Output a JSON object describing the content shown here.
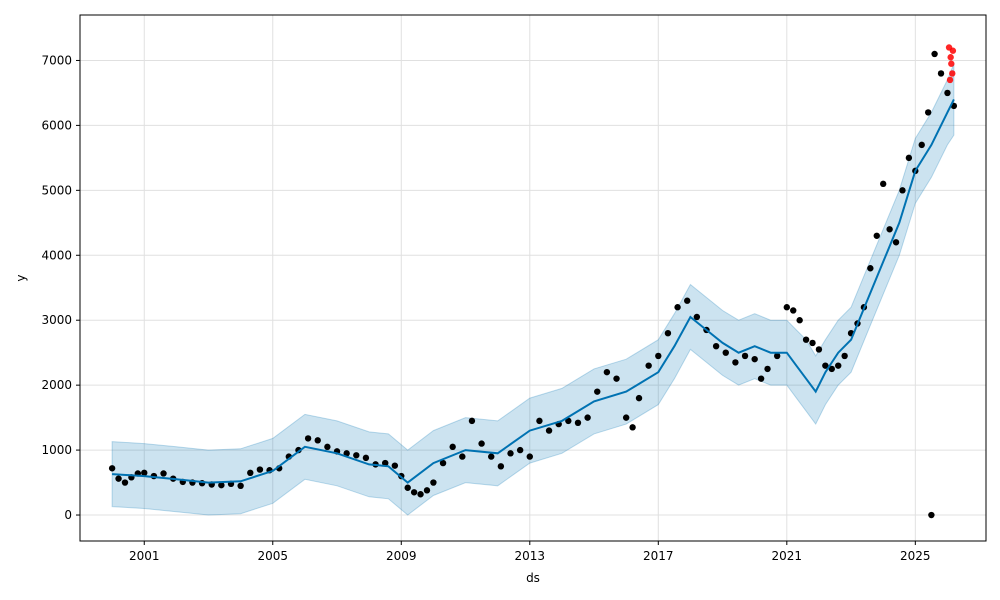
{
  "chart_data": {
    "type": "scatter",
    "title": "",
    "xlabel": "ds",
    "ylabel": "y",
    "xlim": [
      1999.0,
      2027.2
    ],
    "ylim": [
      -400,
      7700
    ],
    "x_ticks": [
      2001,
      2005,
      2009,
      2013,
      2017,
      2021,
      2025
    ],
    "x_tick_labels": [
      "2001",
      "2005",
      "2009",
      "2013",
      "2017",
      "2021",
      "2025"
    ],
    "y_ticks": [
      0,
      1000,
      2000,
      3000,
      4000,
      5000,
      6000,
      7000
    ],
    "y_tick_labels": [
      "0",
      "1000",
      "2000",
      "3000",
      "4000",
      "5000",
      "6000",
      "7000"
    ],
    "grid": true,
    "colors": {
      "observed": "#000000",
      "forecast": "#0072B2",
      "interval_fill": "#0072B2",
      "highlighted": "#ff0000"
    },
    "series": [
      {
        "role": "observed",
        "x": [
          2000.0,
          2000.2,
          2000.4,
          2000.6,
          2000.8,
          2001.0,
          2001.3,
          2001.6,
          2001.9,
          2002.2,
          2002.5,
          2002.8,
          2003.1,
          2003.4,
          2003.7,
          2004.0,
          2004.3,
          2004.6,
          2004.9,
          2005.2,
          2005.5,
          2005.8,
          2006.1,
          2006.4,
          2006.7,
          2007.0,
          2007.3,
          2007.6,
          2007.9,
          2008.2,
          2008.5,
          2008.8,
          2009.0,
          2009.2,
          2009.4,
          2009.6,
          2009.8,
          2010.0,
          2010.3,
          2010.6,
          2010.9,
          2011.2,
          2011.5,
          2011.8,
          2012.1,
          2012.4,
          2012.7,
          2013.0,
          2013.3,
          2013.6,
          2013.9,
          2014.2,
          2014.5,
          2014.8,
          2015.1,
          2015.4,
          2015.7,
          2016.0,
          2016.2,
          2016.4,
          2016.7,
          2017.0,
          2017.3,
          2017.6,
          2017.9,
          2018.2,
          2018.5,
          2018.8,
          2019.1,
          2019.4,
          2019.7,
          2020.0,
          2020.2,
          2020.4,
          2020.7,
          2021.0,
          2021.2,
          2021.4,
          2021.6,
          2021.8,
          2022.0,
          2022.2,
          2022.4,
          2022.6,
          2022.8,
          2023.0,
          2023.2,
          2023.4,
          2023.6,
          2023.8,
          2024.0,
          2024.2,
          2024.4,
          2024.6,
          2024.8,
          2025.0,
          2025.2,
          2025.4,
          2025.6,
          2025.8,
          2026.0,
          2026.2
        ],
        "y": [
          720,
          560,
          500,
          580,
          640,
          650,
          600,
          640,
          560,
          510,
          500,
          490,
          470,
          460,
          480,
          450,
          650,
          700,
          690,
          720,
          900,
          1000,
          1180,
          1150,
          1050,
          980,
          950,
          920,
          880,
          780,
          800,
          760,
          600,
          420,
          350,
          320,
          380,
          500,
          800,
          1050,
          900,
          1450,
          1100,
          900,
          750,
          950,
          1000,
          900,
          1450,
          1300,
          1400,
          1450,
          1420,
          1500,
          1900,
          2200,
          2100,
          1500,
          1350,
          1800,
          2300,
          2450,
          2800,
          3200,
          3300,
          3050,
          2850,
          2600,
          2500,
          2350,
          2450,
          2400,
          2100,
          2250,
          2450,
          3200,
          3150,
          3000,
          2700,
          2650,
          2550,
          2300,
          2250,
          2300,
          2450,
          2800,
          2950,
          3200,
          3800,
          4300,
          5100,
          4400,
          4200,
          5000,
          5500,
          5300,
          5700,
          6200,
          7100,
          6800,
          6500,
          6300
        ]
      },
      {
        "role": "observed_outlier",
        "x": [
          2025.5
        ],
        "y": [
          0
        ]
      },
      {
        "role": "highlighted",
        "x": [
          2026.05,
          2026.08,
          2026.1,
          2026.12,
          2026.15,
          2026.17
        ],
        "y": [
          7200,
          6700,
          7050,
          6950,
          6800,
          7150
        ]
      },
      {
        "role": "forecast",
        "x": [
          2000.0,
          2001.0,
          2002.0,
          2003.0,
          2004.0,
          2005.0,
          2006.0,
          2007.0,
          2008.0,
          2008.6,
          2009.2,
          2010.0,
          2011.0,
          2012.0,
          2013.0,
          2014.0,
          2015.0,
          2016.0,
          2017.0,
          2017.5,
          2018.0,
          2018.5,
          2019.0,
          2019.5,
          2020.0,
          2020.5,
          2021.0,
          2021.3,
          2021.6,
          2021.9,
          2022.2,
          2022.6,
          2023.0,
          2023.5,
          2024.0,
          2024.5,
          2025.0,
          2025.5,
          2026.0,
          2026.2
        ],
        "y": [
          630,
          600,
          550,
          500,
          520,
          680,
          1050,
          950,
          780,
          750,
          500,
          800,
          1000,
          950,
          1300,
          1450,
          1750,
          1900,
          2200,
          2600,
          3050,
          2850,
          2650,
          2500,
          2600,
          2500,
          2500,
          2300,
          2100,
          1900,
          2200,
          2500,
          2700,
          3300,
          3900,
          4500,
          5300,
          5700,
          6200,
          6400
        ]
      }
    ],
    "interval_band": {
      "x": [
        2000.0,
        2001.0,
        2002.0,
        2003.0,
        2004.0,
        2005.0,
        2006.0,
        2007.0,
        2008.0,
        2008.6,
        2009.2,
        2010.0,
        2011.0,
        2012.0,
        2013.0,
        2014.0,
        2015.0,
        2016.0,
        2017.0,
        2017.5,
        2018.0,
        2018.5,
        2019.0,
        2019.5,
        2020.0,
        2020.5,
        2021.0,
        2021.3,
        2021.6,
        2021.9,
        2022.2,
        2022.6,
        2023.0,
        2023.5,
        2024.0,
        2024.5,
        2025.0,
        2025.5,
        2026.0,
        2026.2
      ],
      "upper": [
        1130,
        1100,
        1050,
        1000,
        1020,
        1180,
        1550,
        1450,
        1280,
        1250,
        1000,
        1300,
        1500,
        1450,
        1800,
        1950,
        2250,
        2400,
        2700,
        3100,
        3550,
        3350,
        3150,
        3000,
        3100,
        3000,
        3000,
        2850,
        2700,
        2450,
        2700,
        3000,
        3200,
        3800,
        4400,
        5000,
        5800,
        6200,
        6700,
        6950
      ],
      "lower": [
        130,
        100,
        50,
        0,
        20,
        180,
        550,
        450,
        280,
        250,
        0,
        300,
        500,
        450,
        800,
        950,
        1250,
        1400,
        1700,
        2100,
        2550,
        2350,
        2150,
        2000,
        2100,
        2000,
        2000,
        1800,
        1600,
        1400,
        1700,
        2000,
        2200,
        2800,
        3400,
        4000,
        4800,
        5200,
        5700,
        5850
      ]
    }
  }
}
